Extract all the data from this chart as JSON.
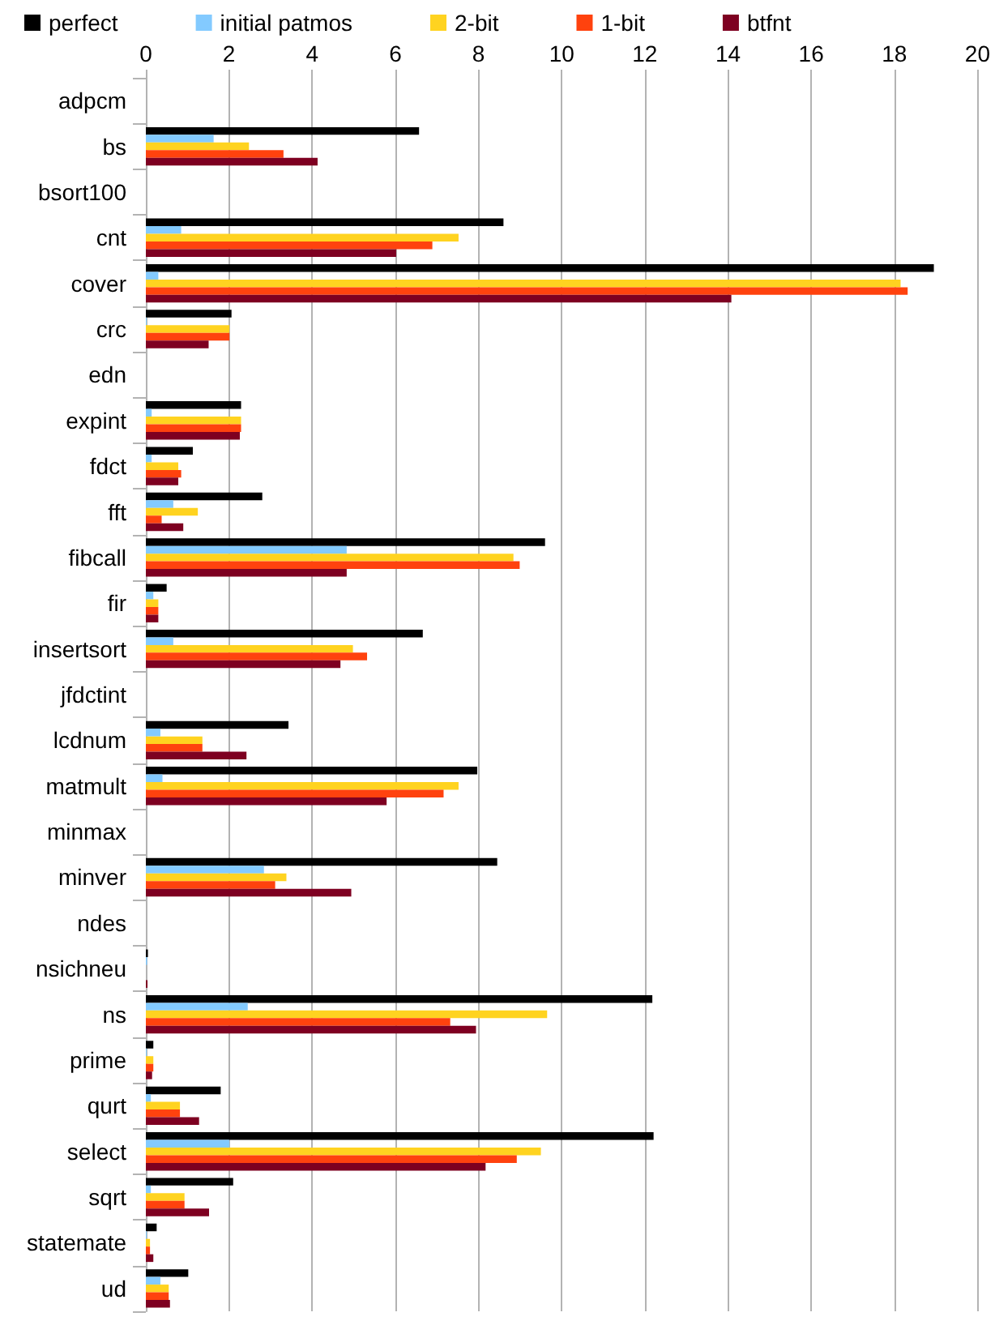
{
  "chart_data": {
    "type": "bar",
    "orientation": "horizontal",
    "categories": [
      "adpcm",
      "bs",
      "bsort100",
      "cnt",
      "cover",
      "crc",
      "edn",
      "expint",
      "fdct",
      "fft",
      "fibcall",
      "fir",
      "insertsort",
      "jfdctint",
      "lcdnum",
      "matmult",
      "minmax",
      "minver",
      "ndes",
      "nsichneu",
      "ns",
      "prime",
      "qurt",
      "select",
      "sqrt",
      "statemate",
      "ud"
    ],
    "series": [
      {
        "name": "perfect",
        "color": "#000000",
        "values": [
          0,
          6.57,
          0,
          8.6,
          18.95,
          2.06,
          0,
          2.29,
          1.13,
          2.8,
          9.6,
          0.5,
          6.66,
          0,
          3.43,
          7.97,
          0,
          8.45,
          0,
          0.05,
          12.18,
          0.18,
          1.8,
          12.21,
          2.1,
          0.26,
          1.02
        ]
      },
      {
        "name": "initial patmos",
        "color": "#83caff",
        "values": [
          0,
          1.63,
          0,
          0.85,
          0.3,
          0.02,
          0,
          0.14,
          0.14,
          0.66,
          4.83,
          0.18,
          0.66,
          0,
          0.35,
          0.4,
          0,
          2.84,
          0,
          0.03,
          2.45,
          0.02,
          0.12,
          2.01,
          0.12,
          0.02,
          0.35
        ]
      },
      {
        "name": "2-bit",
        "color": "#ffd320",
        "values": [
          0,
          2.48,
          0,
          7.52,
          18.15,
          2.01,
          0,
          2.29,
          0.78,
          1.25,
          8.84,
          0.3,
          4.98,
          0,
          1.36,
          7.52,
          0,
          3.38,
          0,
          0,
          9.65,
          0.18,
          0.82,
          9.5,
          0.93,
          0.1,
          0.55
        ]
      },
      {
        "name": "1-bit",
        "color": "#ff420e",
        "values": [
          0,
          3.31,
          0,
          6.89,
          18.32,
          2.01,
          0,
          2.29,
          0.85,
          0.38,
          8.99,
          0.3,
          5.32,
          0,
          1.36,
          7.16,
          0,
          3.11,
          0,
          0,
          7.32,
          0.18,
          0.82,
          8.92,
          0.93,
          0.1,
          0.55
        ]
      },
      {
        "name": "btfnt",
        "color": "#7e0021",
        "values": [
          0,
          4.13,
          0,
          6.02,
          14.08,
          1.51,
          0,
          2.26,
          0.78,
          0.9,
          4.83,
          0.3,
          4.68,
          0,
          2.42,
          5.79,
          0,
          4.94,
          0,
          0.04,
          7.94,
          0.15,
          1.28,
          8.17,
          1.52,
          0.18,
          0.58
        ]
      }
    ],
    "xlim": [
      0,
      20
    ],
    "xticks": [
      0,
      2,
      4,
      6,
      8,
      10,
      12,
      14,
      16,
      18,
      20
    ],
    "grid": "x",
    "legend": "top"
  }
}
